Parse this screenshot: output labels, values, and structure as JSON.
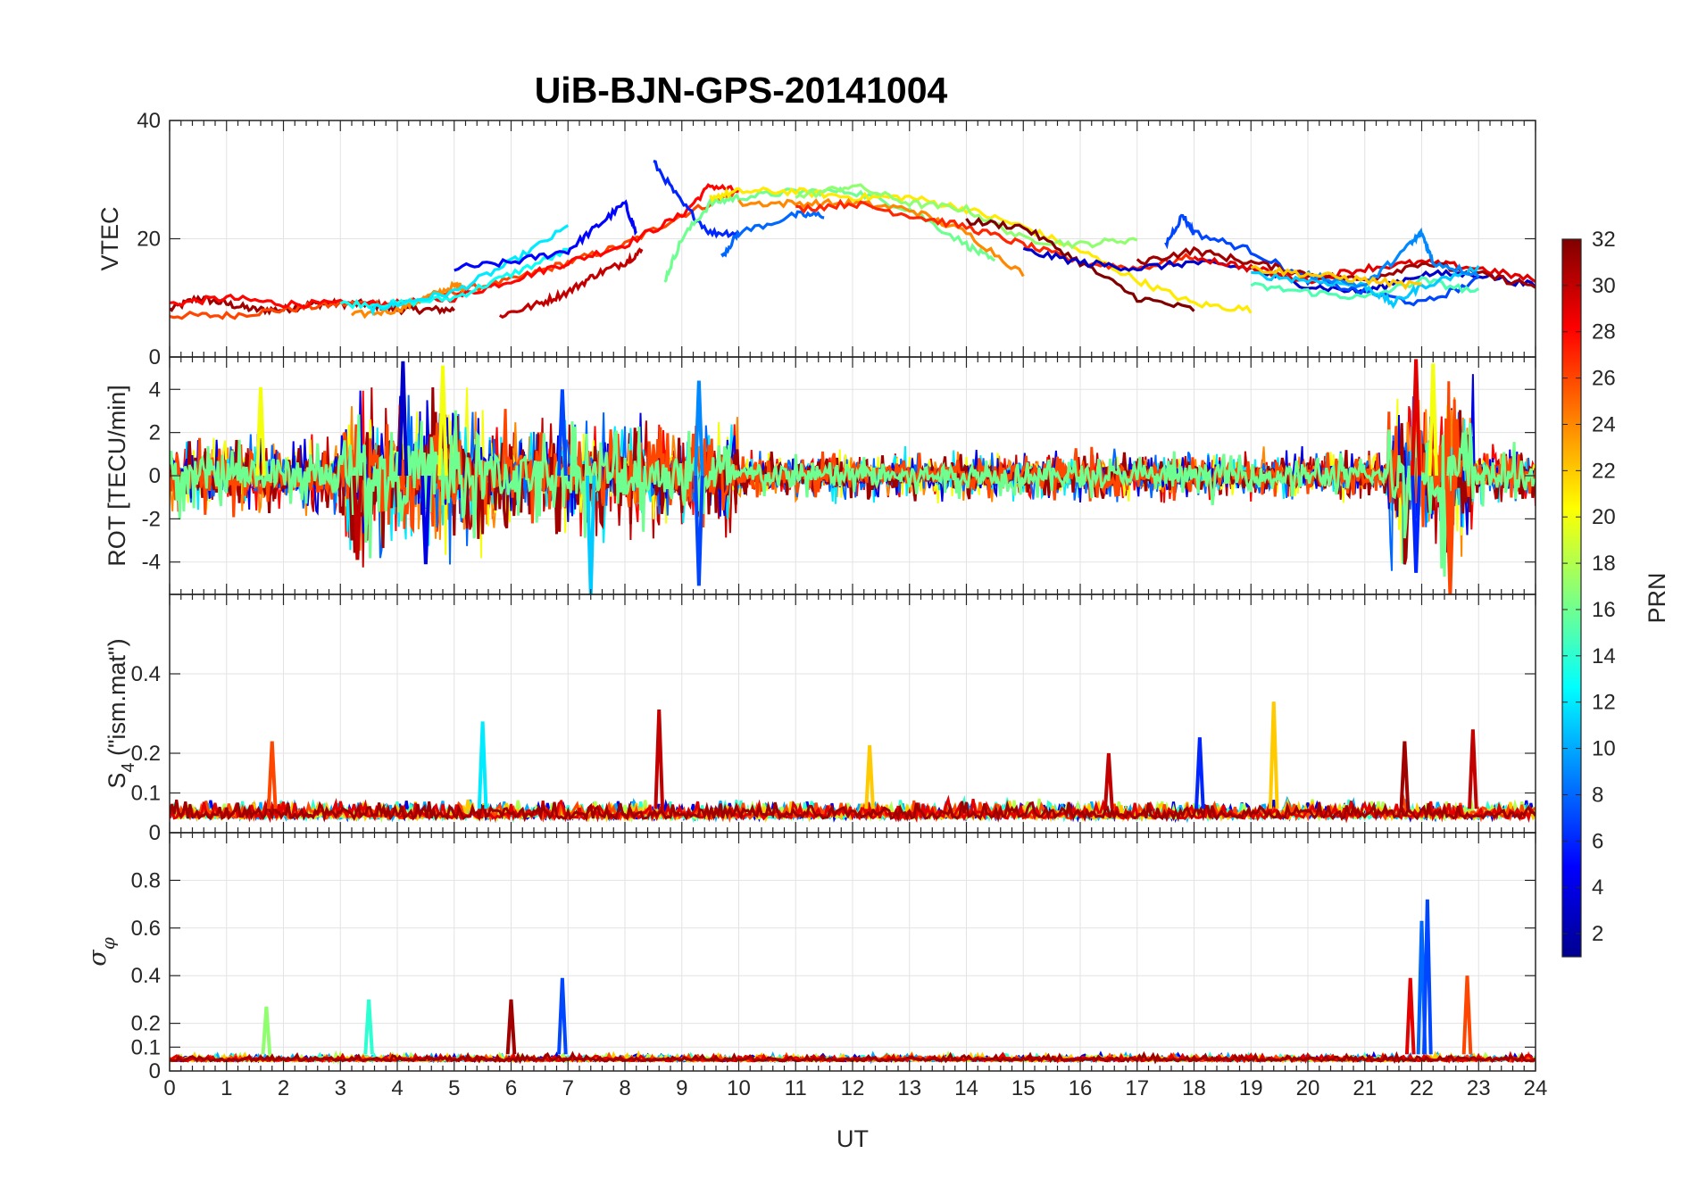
{
  "chart_data": {
    "type": "line",
    "title": "UiB-BJN-GPS-20141004",
    "xlabel": "UT",
    "xlim": [
      0,
      24
    ],
    "x_ticks": [
      "0",
      "1",
      "2",
      "3",
      "4",
      "5",
      "6",
      "7",
      "8",
      "9",
      "10",
      "11",
      "12",
      "13",
      "14",
      "15",
      "16",
      "17",
      "18",
      "19",
      "20",
      "21",
      "22",
      "23",
      "24"
    ],
    "grid": true,
    "colorbar": {
      "label": "PRN",
      "range": [
        1,
        32
      ],
      "ticks": [
        "2",
        "4",
        "6",
        "8",
        "10",
        "12",
        "14",
        "16",
        "18",
        "20",
        "22",
        "24",
        "26",
        "28",
        "30",
        "32"
      ],
      "colormap": "jet",
      "colors": [
        "#00008f",
        "#0000ff",
        "#0080ff",
        "#00ffff",
        "#80ff80",
        "#ffff00",
        "#ff8000",
        "#ff0000",
        "#800000"
      ]
    },
    "panels": [
      {
        "ylabel": "VTEC",
        "ylim": [
          0,
          40
        ],
        "yticks": [
          "0",
          "20",
          "40"
        ],
        "series": [
          {
            "prn": 31,
            "x": [
              0,
              0.5,
              1,
              1.5,
              2,
              2.5,
              3,
              3.5,
              4,
              4.5,
              5
            ],
            "y": [
              8,
              10,
              9,
              8,
              8,
              9,
              9,
              9,
              8,
              8,
              8
            ]
          },
          {
            "prn": 26,
            "x": [
              0,
              1,
              2,
              3,
              4,
              5,
              6,
              7,
              8,
              9,
              10
            ],
            "y": [
              7,
              7,
              8,
              9,
              9,
              11,
              13,
              16,
              19,
              24,
              28
            ]
          },
          {
            "prn": 28,
            "x": [
              0,
              1,
              2,
              3,
              4,
              5,
              6,
              7,
              8,
              9,
              9.5,
              10
            ],
            "y": [
              9,
              10,
              9,
              9,
              9,
              10,
              13,
              16,
              19,
              24,
              29,
              28
            ]
          },
          {
            "prn": 24,
            "x": [
              3.2,
              4,
              4.5,
              5,
              5.2
            ],
            "y": [
              7,
              8,
              10,
              12,
              12
            ]
          },
          {
            "prn": 13,
            "x": [
              3,
              4,
              5,
              6,
              7
            ],
            "y": [
              9,
              9,
              10,
              14,
              18
            ]
          },
          {
            "prn": 12,
            "x": [
              3.5,
              4,
              5,
              6,
              7
            ],
            "y": [
              8,
              9,
              11,
              16,
              22
            ]
          },
          {
            "prn": 5,
            "x": [
              5,
              6,
              7,
              7.5,
              8,
              8.2
            ],
            "y": [
              15,
              16,
              18,
              22,
              26,
              21
            ]
          },
          {
            "prn": 6,
            "x": [
              8.5,
              9,
              9.5,
              10
            ],
            "y": [
              33,
              26,
              21,
              21
            ]
          },
          {
            "prn": 30,
            "x": [
              5.8,
              6.5,
              7,
              7.5,
              8,
              8.3
            ],
            "y": [
              7,
              9,
              11,
              14,
              16,
              18
            ]
          },
          {
            "prn": 16,
            "x": [
              8.7,
              9,
              9.5,
              10,
              11,
              12,
              13,
              14,
              14.5
            ],
            "y": [
              13,
              20,
              26,
              27,
              28,
              28,
              25,
              19,
              16
            ]
          },
          {
            "prn": 21,
            "x": [
              9.5,
              10,
              11,
              12,
              13,
              14,
              15,
              16,
              17,
              18,
              19
            ],
            "y": [
              27,
              28,
              28,
              27,
              27,
              25,
              22,
              18,
              13,
              9,
              8
            ]
          },
          {
            "prn": 8,
            "x": [
              9.7,
              10,
              11,
              11.5
            ],
            "y": [
              17,
              21,
              24,
              24
            ]
          },
          {
            "prn": 17,
            "x": [
              11,
              12,
              13,
              14,
              15,
              16,
              17
            ],
            "y": [
              27,
              29,
              26,
              25,
              20,
              19,
              20
            ]
          },
          {
            "prn": 24,
            "x": [
              10,
              11,
              12,
              13,
              14,
              15
            ],
            "y": [
              26,
              26,
              26,
              25,
              21,
              14
            ]
          },
          {
            "prn": 27,
            "x": [
              11,
              12,
              13,
              14,
              15,
              16,
              17,
              18
            ],
            "y": [
              25,
              26,
              24,
              22,
              19,
              16,
              15,
              17
            ]
          },
          {
            "prn": 32,
            "x": [
              14,
              15,
              16,
              17,
              18
            ],
            "y": [
              23,
              22,
              16,
              10,
              8
            ]
          },
          {
            "prn": 3,
            "x": [
              15,
              16,
              17,
              18,
              19,
              20,
              21,
              22,
              23,
              24
            ],
            "y": [
              18,
              16,
              15,
              16,
              15,
              12,
              11,
              14,
              14,
              12
            ]
          },
          {
            "prn": 7,
            "x": [
              17.5,
              17.8,
              18,
              19,
              20,
              21,
              22,
              23
            ],
            "y": [
              19,
              24,
              21,
              18,
              13,
              11,
              9,
              13
            ]
          },
          {
            "prn": 29,
            "x": [
              18,
              19,
              20,
              21,
              22,
              23,
              24
            ],
            "y": [
              17,
              15,
              13,
              15,
              16,
              15,
              13
            ]
          },
          {
            "prn": 31,
            "x": [
              17,
              18,
              19,
              20,
              21,
              22,
              23,
              24
            ],
            "y": [
              16,
              18,
              16,
              14,
              13,
              16,
              14,
              12
            ]
          },
          {
            "prn": 15,
            "x": [
              19,
              20,
              21,
              22,
              23
            ],
            "y": [
              12,
              11,
              10,
              13,
              11
            ]
          },
          {
            "prn": 11,
            "x": [
              19,
              20,
              21,
              21.5,
              22,
              23
            ],
            "y": [
              14,
              13,
              12,
              9,
              12,
              15
            ]
          },
          {
            "prn": 9,
            "x": [
              20,
              21,
              21.8,
              22,
              22.2,
              23
            ],
            "y": [
              14,
              12,
              19,
              21,
              16,
              14
            ]
          },
          {
            "prn": 22,
            "x": [
              19,
              20,
              21,
              22
            ],
            "y": [
              15,
              14,
              13,
              12
            ]
          }
        ]
      },
      {
        "ylabel": "ROT [TECU/min]",
        "ylim": [
          -5.5,
          5.5
        ],
        "yticks": [
          "-4",
          "-2",
          "0",
          "2",
          "4"
        ],
        "bursts": [
          {
            "x0": 0,
            "x1": 3,
            "amp": 2.2
          },
          {
            "x0": 3,
            "x1": 5.5,
            "amp": 4.5
          },
          {
            "x0": 5.5,
            "x1": 10,
            "amp": 3.2
          },
          {
            "x0": 10,
            "x1": 21.4,
            "amp": 1.4
          },
          {
            "x0": 21.4,
            "x1": 22.9,
            "amp": 5
          },
          {
            "x0": 22.9,
            "x1": 24,
            "amp": 1.6
          }
        ],
        "spikes": [
          {
            "x": 1.6,
            "y": 4.1,
            "prn": 20
          },
          {
            "x": 3.3,
            "y": -3.9,
            "prn": 30
          },
          {
            "x": 4.1,
            "y": 5.3,
            "prn": 3
          },
          {
            "x": 4.5,
            "y": -4.1,
            "prn": 4
          },
          {
            "x": 4.8,
            "y": 5.1,
            "prn": 20
          },
          {
            "x": 6.9,
            "y": 4,
            "prn": 7
          },
          {
            "x": 7.4,
            "y": -5.5,
            "prn": 11
          },
          {
            "x": 9.3,
            "y": 4.4,
            "prn": 9
          },
          {
            "x": 9.3,
            "y": -5.1,
            "prn": 7
          },
          {
            "x": 21.9,
            "y": 5.4,
            "prn": 29
          },
          {
            "x": 21.9,
            "y": -4.5,
            "prn": 6
          },
          {
            "x": 22.2,
            "y": 5.2,
            "prn": 20
          },
          {
            "x": 22.5,
            "y": -5.5,
            "prn": 26
          }
        ]
      },
      {
        "ylabel": "S4 (\"ism.mat\")",
        "ylabel_main": "S",
        "ylabel_sub": "4",
        "ylabel_rest": " (\"ism.mat\")",
        "ylim": [
          0,
          0.6
        ],
        "yticks": [
          "0",
          "0.1",
          "0.2",
          "0.4"
        ],
        "baseline": 0.06,
        "noise": 0.05,
        "spikes": [
          {
            "x": 1.8,
            "y": 0.23,
            "prn": 26
          },
          {
            "x": 5.5,
            "y": 0.28,
            "prn": 12
          },
          {
            "x": 8.6,
            "y": 0.31,
            "prn": 30
          },
          {
            "x": 12.3,
            "y": 0.22,
            "prn": 22
          },
          {
            "x": 16.5,
            "y": 0.2,
            "prn": 30
          },
          {
            "x": 18.1,
            "y": 0.24,
            "prn": 6
          },
          {
            "x": 19.4,
            "y": 0.33,
            "prn": 22
          },
          {
            "x": 21.7,
            "y": 0.23,
            "prn": 31
          },
          {
            "x": 22.9,
            "y": 0.26,
            "prn": 30
          }
        ]
      },
      {
        "ylabel": "σφ",
        "ylabel_main": "σ",
        "ylabel_sub": "φ",
        "ylim": [
          0,
          1
        ],
        "yticks": [
          "0",
          "0.1",
          "0.2",
          "0.4",
          "0.6",
          "0.8"
        ],
        "baseline": 0.07,
        "noise": 0.03,
        "spikes": [
          {
            "x": 1.7,
            "y": 0.27,
            "prn": 17
          },
          {
            "x": 3.5,
            "y": 0.3,
            "prn": 14
          },
          {
            "x": 6,
            "y": 0.3,
            "prn": 31
          },
          {
            "x": 6.9,
            "y": 0.39,
            "prn": 7
          },
          {
            "x": 21.8,
            "y": 0.39,
            "prn": 29
          },
          {
            "x": 22,
            "y": 0.63,
            "prn": 8
          },
          {
            "x": 22.1,
            "y": 0.72,
            "prn": 7
          },
          {
            "x": 22.8,
            "y": 0.4,
            "prn": 26
          }
        ]
      }
    ]
  }
}
